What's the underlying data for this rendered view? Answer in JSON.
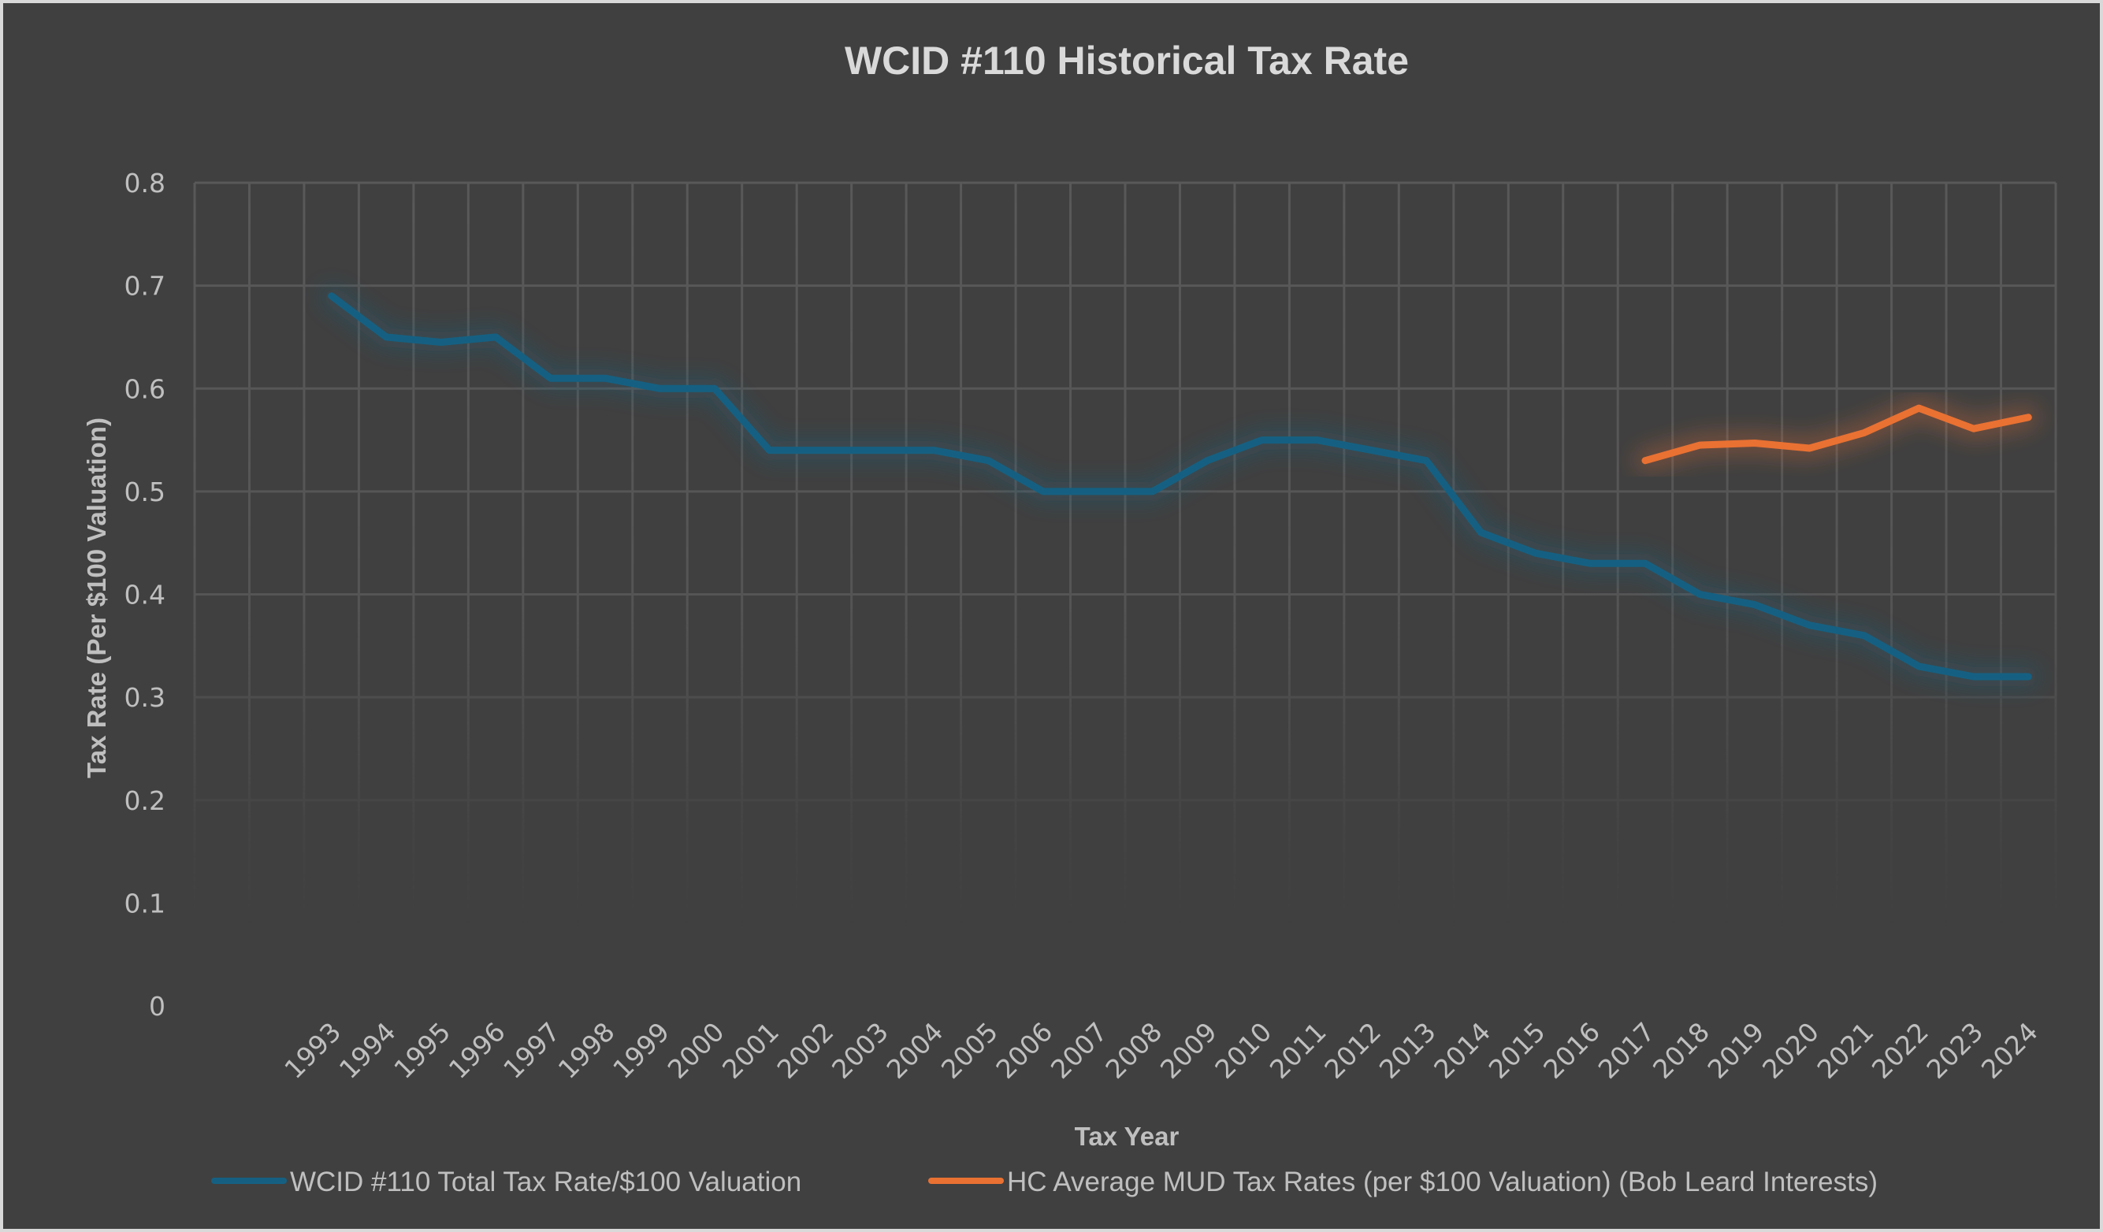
{
  "chart_data": {
    "type": "line",
    "title": "WCID #110 Historical Tax Rate",
    "xlabel": "Tax Year",
    "ylabel": "Tax Rate (Per $100 Valuation)",
    "ylim": [
      0,
      0.8
    ],
    "yticks": [
      "0",
      "0.1",
      "0.2",
      "0.3",
      "0.4",
      "0.5",
      "0.6",
      "0.7",
      "0.8"
    ],
    "ytick_values": [
      0,
      0.1,
      0.2,
      0.3,
      0.4,
      0.5,
      0.6,
      0.7,
      0.8
    ],
    "leading_blank_categories": 2,
    "categories": [
      "1993",
      "1994",
      "1995",
      "1996",
      "1997",
      "1998",
      "1999",
      "2000",
      "2001",
      "2002",
      "2003",
      "2004",
      "2005",
      "2006",
      "2007",
      "2008",
      "2009",
      "2010",
      "2011",
      "2012",
      "2013",
      "2014",
      "2015",
      "2016",
      "2017",
      "2018",
      "2019",
      "2020",
      "2021",
      "2022",
      "2023",
      "2024"
    ],
    "grid": true,
    "legend": "bottom",
    "series": [
      {
        "name": "WCID #110 Total Tax Rate/$100 Valuation",
        "color": "#156082",
        "values": [
          0.69,
          0.65,
          0.645,
          0.65,
          0.61,
          0.61,
          0.6,
          0.6,
          0.54,
          0.54,
          0.54,
          0.54,
          0.53,
          0.5,
          0.5,
          0.5,
          0.53,
          0.55,
          0.55,
          0.54,
          0.53,
          0.46,
          0.44,
          0.43,
          0.43,
          0.4,
          0.39,
          0.37,
          0.36,
          0.33,
          0.32,
          0.32
        ]
      },
      {
        "name": "HC Average MUD Tax Rates (per $100 Valuation) (Bob Leard Interests)",
        "color": "#e97132",
        "values": [
          null,
          null,
          null,
          null,
          null,
          null,
          null,
          null,
          null,
          null,
          null,
          null,
          null,
          null,
          null,
          null,
          null,
          null,
          null,
          null,
          null,
          null,
          null,
          null,
          0.53,
          0.545,
          0.547,
          0.542,
          0.557,
          0.581,
          0.561,
          0.572
        ]
      }
    ]
  },
  "colors": {
    "background": "#404040",
    "gridline": "#595959",
    "text": "#bfbfbf",
    "title": "#d9d9d9"
  }
}
